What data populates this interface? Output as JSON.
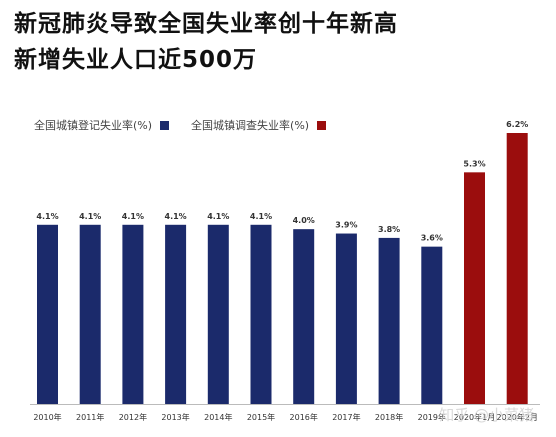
{
  "title": {
    "line1": "新冠肺炎导致全国失业率创十年新高",
    "line2": "新增失业人口近500万"
  },
  "legend": {
    "registered": "全国城镇登记失业率(%)",
    "surveyed": "全国城镇调查失业率(%)"
  },
  "colors": {
    "registered": "#1b2a6b",
    "surveyed": "#9b0d0d",
    "axis": "#bbbbbb",
    "label": "#333333"
  },
  "watermark": "知乎 @小菜猪",
  "chart_data": {
    "type": "bar",
    "categories": [
      "2010年",
      "2011年",
      "2012年",
      "2013年",
      "2014年",
      "2015年",
      "2016年",
      "2017年",
      "2018年",
      "2019年",
      "2020年1月",
      "2020年2月"
    ],
    "values": [
      4.1,
      4.1,
      4.1,
      4.1,
      4.1,
      4.1,
      4.0,
      3.9,
      3.8,
      3.6,
      5.3,
      6.2
    ],
    "value_labels": [
      "4.1%",
      "4.1%",
      "4.1%",
      "4.1%",
      "4.1%",
      "4.1%",
      "4.0%",
      "3.9%",
      "3.8%",
      "3.6%",
      "5.3%",
      "6.2%"
    ],
    "series_of_bar": [
      "registered",
      "registered",
      "registered",
      "registered",
      "registered",
      "registered",
      "registered",
      "registered",
      "registered",
      "registered",
      "surveyed",
      "surveyed"
    ],
    "title": "",
    "xlabel": "",
    "ylabel": "",
    "ylim": [
      0,
      6.2
    ],
    "grid": false,
    "legend_position": "top-left"
  }
}
